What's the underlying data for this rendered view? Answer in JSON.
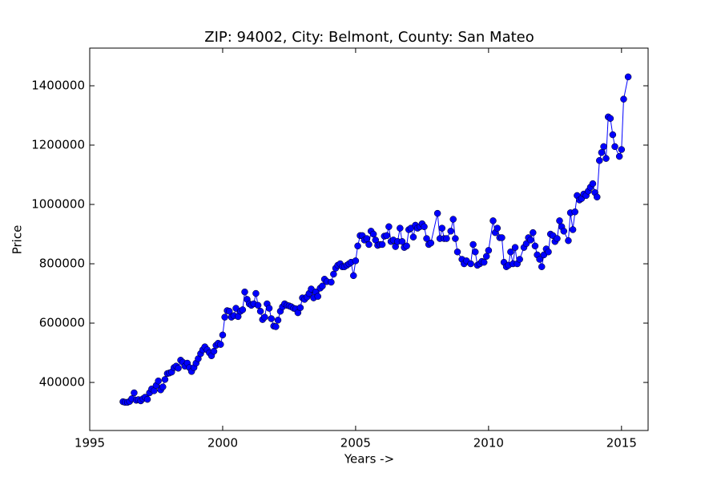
{
  "chart_data": {
    "type": "line",
    "title": "ZIP: 94002, City: Belmont, County: San Mateo",
    "x_label": "Years ->",
    "y_label": "Price",
    "xlim": [
      1995,
      2016
    ],
    "xticks": [
      1995,
      2000,
      2005,
      2010,
      2015
    ],
    "ylim": [
      238000,
      1527000
    ],
    "yticks": [
      400000,
      600000,
      800000,
      1000000,
      1200000,
      1400000
    ],
    "grid": false,
    "series": [
      {
        "color": "#0000ff",
        "x": [
          1996.25,
          1996.33,
          1996.42,
          1996.5,
          1996.58,
          1996.67,
          1996.75,
          1996.83,
          1996.92,
          1997.0,
          1997.08,
          1997.17,
          1997.25,
          1997.33,
          1997.42,
          1997.5,
          1997.58,
          1997.67,
          1997.75,
          1997.83,
          1997.92,
          1998.0,
          1998.08,
          1998.17,
          1998.25,
          1998.33,
          1998.42,
          1998.5,
          1998.58,
          1998.67,
          1998.75,
          1998.83,
          1998.92,
          1999.0,
          1999.08,
          1999.17,
          1999.25,
          1999.33,
          1999.42,
          1999.5,
          1999.58,
          1999.67,
          1999.75,
          1999.83,
          1999.92,
          2000.0,
          2000.08,
          2000.17,
          2000.25,
          2000.33,
          2000.42,
          2000.5,
          2000.58,
          2000.67,
          2000.75,
          2000.83,
          2000.92,
          2001.0,
          2001.08,
          2001.17,
          2001.25,
          2001.33,
          2001.42,
          2001.5,
          2001.58,
          2001.67,
          2001.75,
          2001.83,
          2001.92,
          2002.0,
          2002.08,
          2002.17,
          2002.25,
          2002.33,
          2002.42,
          2002.5,
          2002.58,
          2002.67,
          2002.75,
          2002.83,
          2002.92,
          2003.0,
          2003.08,
          2003.17,
          2003.25,
          2003.33,
          2003.42,
          2003.5,
          2003.58,
          2003.67,
          2003.75,
          2003.83,
          2003.92,
          2004.08,
          2004.17,
          2004.25,
          2004.33,
          2004.42,
          2004.5,
          2004.58,
          2004.67,
          2004.75,
          2004.83,
          2004.92,
          2005.0,
          2005.08,
          2005.17,
          2005.25,
          2005.33,
          2005.42,
          2005.5,
          2005.58,
          2005.67,
          2005.75,
          2005.83,
          2005.92,
          2006.0,
          2006.08,
          2006.17,
          2006.25,
          2006.33,
          2006.42,
          2006.5,
          2006.58,
          2006.67,
          2006.75,
          2006.83,
          2006.92,
          2007.0,
          2007.08,
          2007.17,
          2007.25,
          2007.33,
          2007.42,
          2007.5,
          2007.58,
          2007.67,
          2007.75,
          2007.83,
          2008.08,
          2008.17,
          2008.25,
          2008.33,
          2008.42,
          2008.58,
          2008.67,
          2008.75,
          2008.83,
          2009.0,
          2009.08,
          2009.17,
          2009.33,
          2009.42,
          2009.5,
          2009.58,
          2009.67,
          2009.75,
          2009.83,
          2009.92,
          2010.0,
          2010.17,
          2010.25,
          2010.33,
          2010.42,
          2010.5,
          2010.58,
          2010.67,
          2010.75,
          2010.83,
          2010.92,
          2011.0,
          2011.08,
          2011.17,
          2011.33,
          2011.42,
          2011.5,
          2011.58,
          2011.67,
          2011.75,
          2011.83,
          2011.92,
          2012.0,
          2012.08,
          2012.17,
          2012.25,
          2012.33,
          2012.42,
          2012.5,
          2012.58,
          2012.67,
          2012.75,
          2012.83,
          2013.0,
          2013.08,
          2013.17,
          2013.25,
          2013.33,
          2013.42,
          2013.5,
          2013.58,
          2013.67,
          2013.75,
          2013.83,
          2013.92,
          2014.0,
          2014.08,
          2014.17,
          2014.25,
          2014.33,
          2014.42,
          2014.5,
          2014.58,
          2014.67,
          2014.75,
          2014.92,
          2015.0,
          2015.08,
          2015.25
        ],
        "values": [
          335000,
          333000,
          333000,
          336000,
          345000,
          365000,
          340000,
          342000,
          338000,
          345000,
          350000,
          343000,
          365000,
          378000,
          372000,
          390000,
          405000,
          375000,
          385000,
          410000,
          430000,
          432000,
          435000,
          450000,
          455000,
          448000,
          475000,
          468000,
          455000,
          465000,
          450000,
          437000,
          450000,
          465000,
          480000,
          497000,
          510000,
          520000,
          510000,
          500000,
          490000,
          505000,
          525000,
          532000,
          528000,
          560000,
          620000,
          642000,
          640000,
          620000,
          625000,
          650000,
          622000,
          640000,
          645000,
          705000,
          680000,
          665000,
          660000,
          665000,
          700000,
          660000,
          640000,
          612000,
          620000,
          665000,
          650000,
          615000,
          590000,
          588000,
          610000,
          640000,
          655000,
          665000,
          660000,
          658000,
          655000,
          650000,
          648000,
          635000,
          652000,
          685000,
          680000,
          688000,
          700000,
          715000,
          685000,
          705000,
          690000,
          718000,
          725000,
          748000,
          740000,
          738000,
          765000,
          785000,
          795000,
          800000,
          790000,
          790000,
          795000,
          800000,
          805000,
          760000,
          810000,
          860000,
          895000,
          895000,
          880000,
          885000,
          865000,
          910000,
          900000,
          880000,
          862000,
          865000,
          865000,
          893000,
          895000,
          925000,
          875000,
          880000,
          858000,
          875000,
          920000,
          875000,
          855000,
          860000,
          915000,
          920000,
          890000,
          930000,
          920000,
          925000,
          935000,
          925000,
          885000,
          865000,
          870000,
          970000,
          885000,
          920000,
          885000,
          885000,
          910000,
          950000,
          885000,
          840000,
          815000,
          800000,
          810000,
          800000,
          865000,
          840000,
          795000,
          800000,
          808000,
          805000,
          825000,
          845000,
          945000,
          905000,
          920000,
          888000,
          888000,
          805000,
          790000,
          795000,
          840000,
          800000,
          855000,
          800000,
          815000,
          855000,
          868000,
          888000,
          880000,
          905000,
          860000,
          830000,
          815000,
          790000,
          830000,
          850000,
          840000,
          900000,
          895000,
          875000,
          885000,
          945000,
          925000,
          910000,
          878000,
          972000,
          915000,
          975000,
          1030000,
          1015000,
          1020000,
          1035000,
          1030000,
          1045000,
          1058000,
          1070000,
          1040000,
          1025000,
          1148000,
          1175000,
          1195000,
          1155000,
          1295000,
          1290000,
          1235000,
          1195000,
          1162000,
          1185000,
          1355000,
          1430000
        ]
      }
    ]
  }
}
